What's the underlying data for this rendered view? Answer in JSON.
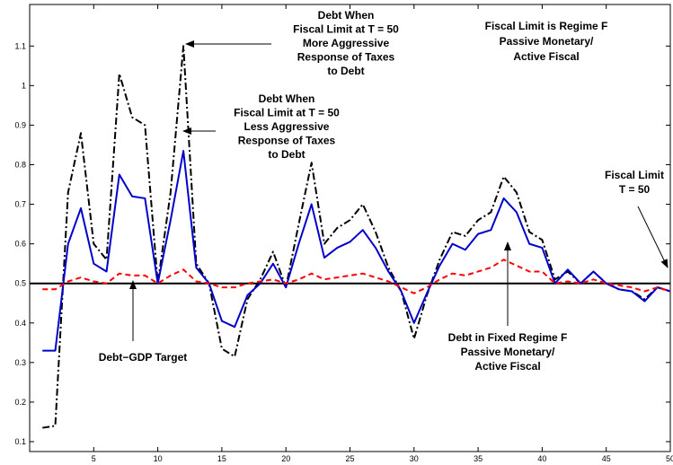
{
  "chart_data": {
    "type": "line",
    "title": "",
    "xlabel": "",
    "ylabel": "",
    "xlim": [
      0,
      50
    ],
    "ylim": [
      0.075,
      1.205
    ],
    "xticks": [
      "5",
      "10",
      "15",
      "20",
      "25",
      "30",
      "35",
      "40",
      "45",
      "50"
    ],
    "yticks": [
      "0.1",
      "0.2",
      "0.3",
      "0.4",
      "0.5",
      "0.6",
      "0.7",
      "0.8",
      "0.9",
      "1",
      "1.1"
    ],
    "x": [
      1,
      2,
      3,
      4,
      5,
      6,
      7,
      8,
      9,
      10,
      11,
      12,
      13,
      14,
      15,
      16,
      17,
      18,
      19,
      20,
      21,
      22,
      23,
      24,
      25,
      26,
      27,
      28,
      29,
      30,
      31,
      32,
      33,
      34,
      35,
      36,
      37,
      38,
      39,
      40,
      41,
      42,
      43,
      44,
      45,
      46,
      47,
      48,
      49,
      50
    ],
    "reference_line": {
      "y": 0.5,
      "color": "#000000"
    },
    "series": [
      {
        "style": "dashdot",
        "color": "#000000",
        "values": [
          0.135,
          0.14,
          0.73,
          0.88,
          0.6,
          0.56,
          1.03,
          0.92,
          0.9,
          0.5,
          0.73,
          1.1,
          0.55,
          0.5,
          0.335,
          0.315,
          0.46,
          0.51,
          0.58,
          0.49,
          0.65,
          0.805,
          0.6,
          0.64,
          0.66,
          0.7,
          0.63,
          0.54,
          0.48,
          0.36,
          0.47,
          0.56,
          0.63,
          0.62,
          0.66,
          0.68,
          0.77,
          0.73,
          0.63,
          0.61,
          0.51,
          0.53,
          0.5,
          0.53,
          0.5,
          0.485,
          0.48,
          0.46,
          0.49,
          0.48
        ]
      },
      {
        "style": "solid",
        "color": "#0000cc",
        "values": [
          0.33,
          0.33,
          0.6,
          0.69,
          0.55,
          0.53,
          0.775,
          0.72,
          0.715,
          0.5,
          0.66,
          0.835,
          0.54,
          0.5,
          0.405,
          0.39,
          0.47,
          0.5,
          0.55,
          0.49,
          0.6,
          0.7,
          0.565,
          0.59,
          0.605,
          0.635,
          0.59,
          0.53,
          0.48,
          0.4,
          0.475,
          0.545,
          0.6,
          0.585,
          0.625,
          0.635,
          0.715,
          0.68,
          0.6,
          0.59,
          0.5,
          0.535,
          0.5,
          0.53,
          0.5,
          0.485,
          0.48,
          0.455,
          0.49,
          0.48
        ]
      },
      {
        "style": "dashed",
        "color": "#ff0000",
        "values": [
          0.485,
          0.485,
          0.505,
          0.515,
          0.505,
          0.5,
          0.525,
          0.52,
          0.52,
          0.5,
          0.52,
          0.535,
          0.505,
          0.5,
          0.49,
          0.49,
          0.5,
          0.505,
          0.51,
          0.5,
          0.51,
          0.525,
          0.51,
          0.515,
          0.52,
          0.525,
          0.515,
          0.505,
          0.49,
          0.475,
          0.49,
          0.51,
          0.525,
          0.52,
          0.53,
          0.54,
          0.56,
          0.545,
          0.53,
          0.53,
          0.5,
          0.505,
          0.5,
          0.51,
          0.5,
          0.495,
          0.49,
          0.48,
          0.49,
          0.48
        ]
      }
    ],
    "annotations": [
      {
        "lines": [
          "Debt When",
          "Fiscal Limit at T = 50",
          "More Aggressive",
          "Response of Taxes",
          "to Debt"
        ]
      },
      {
        "lines": [
          "Fiscal Limit is Regime F",
          "Passive Monetary/",
          "Active Fiscal"
        ]
      },
      {
        "lines": [
          "Debt When",
          "Fiscal Limit at T = 50",
          "Less Aggressive",
          "Response of Taxes",
          "to Debt"
        ]
      },
      {
        "lines": [
          "Fiscal Limit",
          "T = 50"
        ]
      },
      {
        "lines": [
          "Debt−GDP Target"
        ]
      },
      {
        "lines": [
          "Debt in Fixed Regime F",
          "Passive Monetary/",
          "Active Fiscal"
        ]
      }
    ]
  }
}
